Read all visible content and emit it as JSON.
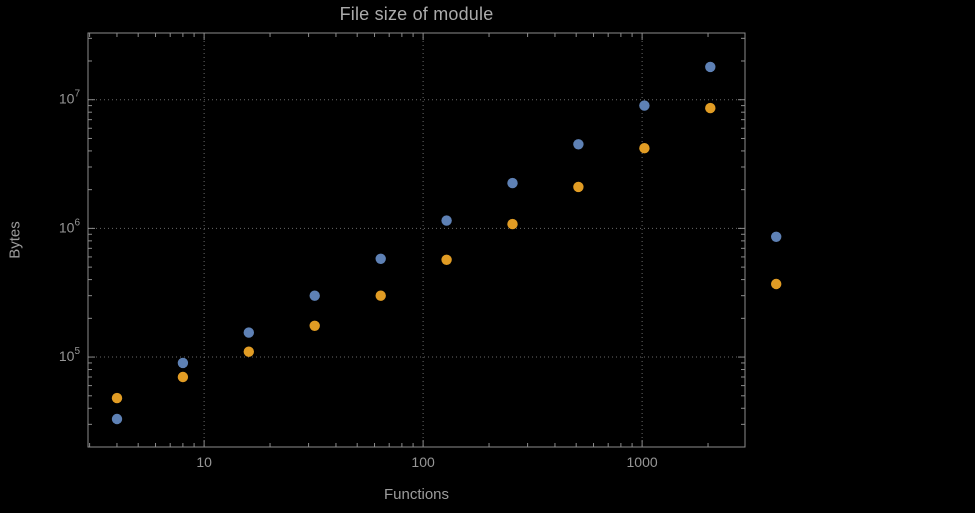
{
  "chart_data": {
    "type": "scatter",
    "title": "File size of module",
    "xlabel": "Functions",
    "ylabel": "Bytes",
    "x_scale": "log",
    "y_scale": "log",
    "grid": "dotted",
    "legend": "none",
    "xlim": [
      2.95,
      2950
    ],
    "ylim": [
      20000,
      33000000
    ],
    "x_ticks": [
      10,
      100,
      1000
    ],
    "x_tick_labels": [
      "10",
      "100",
      "1000"
    ],
    "y_ticks": [
      100000,
      1000000,
      10000000
    ],
    "y_tick_exponents": [
      5,
      6,
      7
    ],
    "x": [
      4,
      8,
      16,
      32,
      64,
      128,
      256,
      512,
      1024,
      2048,
      4096
    ],
    "series": [
      {
        "name": "series-blue",
        "color": "#5e81b5",
        "values": [
          33000,
          90000,
          155000,
          300000,
          580000,
          1150000,
          2250000,
          4500000,
          9000000,
          18000000,
          860000
        ]
      },
      {
        "name": "series-orange",
        "color": "#e19c24",
        "values": [
          48000,
          70000,
          110000,
          175000,
          300000,
          570000,
          1080000,
          2100000,
          4200000,
          8600000,
          370000
        ]
      }
    ],
    "colors": {
      "background": "#000000",
      "frame": "#8c8c8c",
      "grid": "#686868",
      "tick_text": "#969696",
      "title_text": "#ababab",
      "label_text": "#9c9c9c"
    }
  }
}
